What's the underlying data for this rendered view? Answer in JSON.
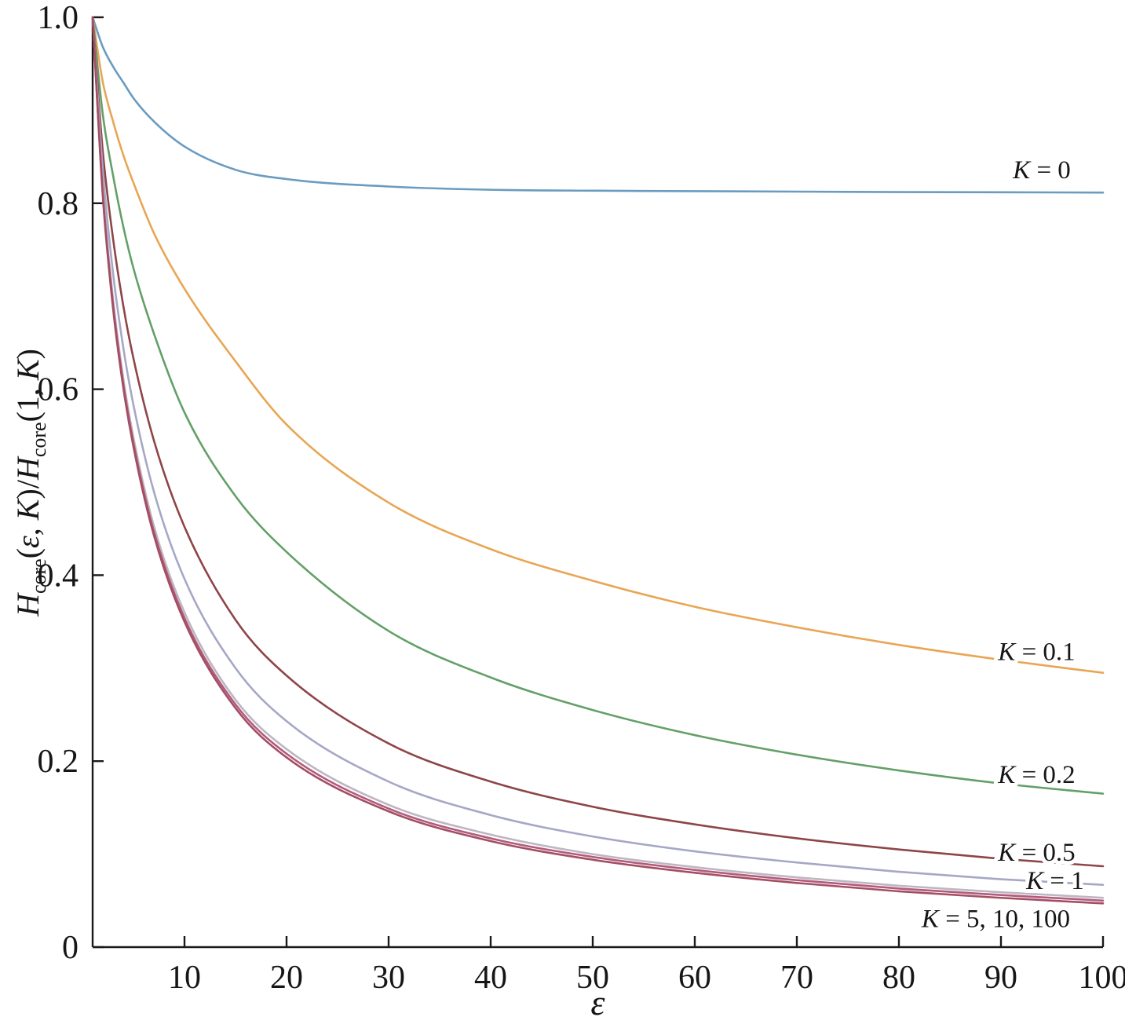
{
  "figure": {
    "background": "#ffffff",
    "axis_color": "#1a1a1a",
    "text_color": "#161616"
  },
  "chart_data": {
    "type": "line",
    "title": "",
    "xlabel": "ε",
    "ylabel": "H_core(ε, K)/H_core(1, K)",
    "ylabel_segments": [
      {
        "t": "H",
        "s": "it"
      },
      {
        "t": "core",
        "s": "sub"
      },
      {
        "t": "(",
        "s": "n"
      },
      {
        "t": "ε",
        "s": "it"
      },
      {
        "t": ", ",
        "s": "n"
      },
      {
        "t": "K",
        "s": "it"
      },
      {
        "t": ")/",
        "s": "n"
      },
      {
        "t": "H",
        "s": "it"
      },
      {
        "t": "core",
        "s": "sub"
      },
      {
        "t": "(1, ",
        "s": "n"
      },
      {
        "t": "K",
        "s": "it"
      },
      {
        "t": ")",
        "s": "n"
      }
    ],
    "xlim": [
      1,
      100
    ],
    "ylim": [
      0,
      1.0
    ],
    "grid": false,
    "legend_position": "inline-right-labels",
    "x_ticks": [
      {
        "v": 10,
        "label": "10"
      },
      {
        "v": 20,
        "label": "20"
      },
      {
        "v": 30,
        "label": "30"
      },
      {
        "v": 40,
        "label": "40"
      },
      {
        "v": 50,
        "label": "50"
      },
      {
        "v": 60,
        "label": "60"
      },
      {
        "v": 70,
        "label": "70"
      },
      {
        "v": 80,
        "label": "80"
      },
      {
        "v": 90,
        "label": "90"
      },
      {
        "v": 100,
        "label": "100"
      }
    ],
    "y_ticks": [
      {
        "v": 0,
        "label": "0"
      },
      {
        "v": 0.2,
        "label": "0.2"
      },
      {
        "v": 0.4,
        "label": "0.4"
      },
      {
        "v": 0.6,
        "label": "0.6"
      },
      {
        "v": 0.8,
        "label": "0.8"
      },
      {
        "v": 1.0,
        "label": "1.0"
      }
    ],
    "x": [
      1,
      2,
      3,
      4,
      5,
      7,
      10,
      15,
      20,
      30,
      40,
      50,
      60,
      70,
      80,
      90,
      100
    ],
    "series": [
      {
        "id": "k0",
        "name": "K = 0",
        "color": "#6a9bc0",
        "values": [
          1.0,
          0.968,
          0.947,
          0.93,
          0.913,
          0.888,
          0.861,
          0.836,
          0.826,
          0.818,
          0.8145,
          0.8135,
          0.813,
          0.8125,
          0.812,
          0.8118,
          0.8115
        ]
      },
      {
        "id": "k0_1",
        "name": "K = 0.1",
        "color": "#e8a654",
        "values": [
          1.0,
          0.93,
          0.888,
          0.852,
          0.822,
          0.768,
          0.708,
          0.63,
          0.562,
          0.478,
          0.428,
          0.394,
          0.366,
          0.344,
          0.325,
          0.309,
          0.295
        ]
      },
      {
        "id": "k0_2",
        "name": "K = 0.2",
        "color": "#63a067",
        "values": [
          1.0,
          0.895,
          0.83,
          0.775,
          0.73,
          0.66,
          0.575,
          0.485,
          0.425,
          0.34,
          0.29,
          0.255,
          0.228,
          0.207,
          0.19,
          0.176,
          0.165
        ]
      },
      {
        "id": "k0_5",
        "name": "K = 0.5",
        "color": "#8e4548",
        "values": [
          1.0,
          0.855,
          0.762,
          0.69,
          0.633,
          0.545,
          0.452,
          0.352,
          0.292,
          0.219,
          0.178,
          0.151,
          0.132,
          0.117,
          0.105,
          0.095,
          0.087
        ]
      },
      {
        "id": "k1",
        "name": "K = 1",
        "color": "#a6a7c6",
        "values": [
          1.0,
          0.835,
          0.725,
          0.645,
          0.583,
          0.49,
          0.396,
          0.3,
          0.243,
          0.178,
          0.142,
          0.119,
          0.103,
          0.091,
          0.081,
          0.073,
          0.067
        ]
      },
      {
        "id": "k5",
        "name": "K = 5",
        "color": "#bdb6c0",
        "values": [
          1.0,
          0.815,
          0.697,
          0.612,
          0.548,
          0.453,
          0.36,
          0.266,
          0.213,
          0.153,
          0.121,
          0.1,
          0.086,
          0.075,
          0.066,
          0.059,
          0.053
        ]
      },
      {
        "id": "k10",
        "name": "K = 10",
        "color": "#b35a7c",
        "values": [
          1.0,
          0.81,
          0.691,
          0.606,
          0.542,
          0.447,
          0.354,
          0.261,
          0.208,
          0.149,
          0.117,
          0.097,
          0.083,
          0.072,
          0.063,
          0.056,
          0.05
        ]
      },
      {
        "id": "k100",
        "name": "K = 100",
        "color": "#a34e62",
        "values": [
          1.0,
          0.807,
          0.687,
          0.602,
          0.538,
          0.443,
          0.35,
          0.257,
          0.204,
          0.146,
          0.114,
          0.094,
          0.08,
          0.069,
          0.06,
          0.053,
          0.047
        ]
      }
    ],
    "annotations": [
      {
        "text": "K = 0",
        "k": "K",
        "rest": " = 0",
        "x": 94.0,
        "y": 0.836
      },
      {
        "text": "K = 0.1",
        "k": "K",
        "rest": " = 0.1",
        "x": 93.5,
        "y": 0.318
      },
      {
        "text": "K = 0.2",
        "k": "K",
        "rest": " = 0.2",
        "x": 93.5,
        "y": 0.186
      },
      {
        "text": "K = 0.5",
        "k": "K",
        "rest": " = 0.5",
        "x": 93.5,
        "y": 0.102
      },
      {
        "text": "K = 1",
        "k": "K",
        "rest": " = 1",
        "x": 95.3,
        "y": 0.072
      },
      {
        "text": "K = 5, 10, 100",
        "k": "K",
        "rest": " = 5, 10, 100",
        "x": 89.5,
        "y": 0.031
      }
    ]
  }
}
